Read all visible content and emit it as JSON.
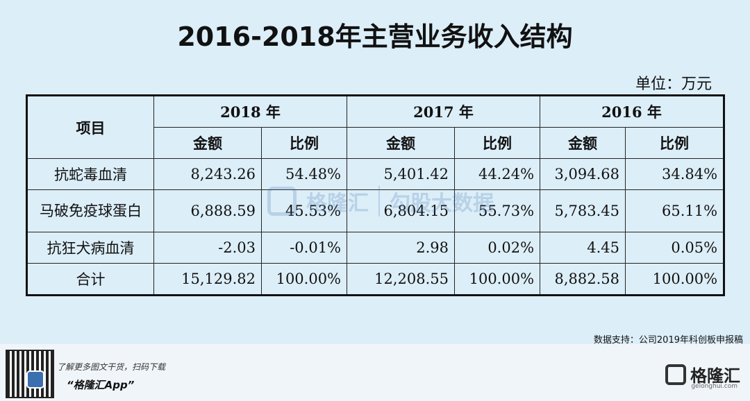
{
  "title": "2016-2018年主营业务收入结构",
  "unit": "单位：万元",
  "table": {
    "item_header": "项目",
    "years": [
      "2018 年",
      "2017 年",
      "2016 年"
    ],
    "amount_label": "金额",
    "ratio_label": "比例",
    "rows": [
      {
        "item": "抗蛇毒血清",
        "values": [
          "8,243.26",
          "54.48%",
          "5,401.42",
          "44.24%",
          "3,094.68",
          "34.84%"
        ]
      },
      {
        "item": "马破免疫球蛋白",
        "values": [
          "6,888.59",
          "45.53%",
          "6,804.15",
          "55.73%",
          "5,783.45",
          "65.11%"
        ]
      },
      {
        "item": "抗狂犬病血清",
        "values": [
          "-2.03",
          "-0.01%",
          "2.98",
          "0.02%",
          "4.45",
          "0.05%"
        ]
      },
      {
        "item": "合计",
        "values": [
          "15,129.82",
          "100.00%",
          "12,208.55",
          "100.00%",
          "8,882.58",
          "100.00%"
        ]
      }
    ]
  },
  "watermark": {
    "brand": "格隆汇",
    "partner": "勾股大数据"
  },
  "source": "数据支持：公司2019年科创板申报稿",
  "footer": {
    "promo_line": "了解更多图文干货，扫码下载",
    "app_name": "“格隆汇App”",
    "brand": "格隆汇",
    "brand_sub": "gelonghui.com"
  },
  "colors": {
    "background": "#dceef8",
    "brand_blue": "#3b6fb0"
  }
}
